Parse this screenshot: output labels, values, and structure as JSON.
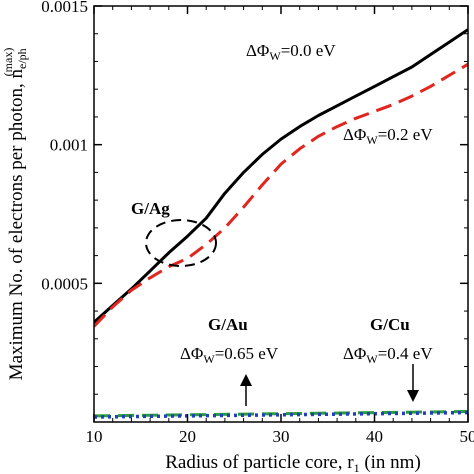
{
  "chart_data": {
    "type": "line",
    "xlabel": "Radius of particle core, r",
    "xlabel_sub": "1",
    "xlabel_tail": " (in nm)",
    "ylabel": "Maximum No. of electrons per photon, n",
    "ylabel_sub": "e/ph",
    "ylabel_sup": "(max)",
    "xlim": [
      10,
      50
    ],
    "ylim": [
      0,
      0.0015
    ],
    "x_ticks": [
      10,
      20,
      30,
      40,
      50
    ],
    "x_tick_labels": [
      "10",
      "20",
      "30",
      "40",
      "50"
    ],
    "y_ticks": [
      0.0005,
      0.001,
      0.0015
    ],
    "y_tick_labels": [
      "0.0005",
      "0.001",
      "0.0015"
    ],
    "grid": false,
    "series": [
      {
        "name": "ΔΦW=0.0 eV",
        "group": "G/Ag",
        "color": "#000000",
        "dash": "solid",
        "x": [
          10,
          12,
          14,
          16,
          18,
          20,
          22,
          24,
          26,
          28,
          30,
          32,
          34,
          36,
          38,
          40,
          42,
          44,
          46,
          48,
          50
        ],
        "y": [
          0.00036,
          0.00042,
          0.00048,
          0.000545,
          0.00061,
          0.00067,
          0.000735,
          0.000825,
          0.0009,
          0.000965,
          0.00102,
          0.001065,
          0.001105,
          0.00114,
          0.001175,
          0.00121,
          0.001245,
          0.00128,
          0.001325,
          0.00137,
          0.001415
        ]
      },
      {
        "name": "ΔΦW=0.2 eV",
        "group": "G/Ag",
        "color": "#e0261e",
        "dash": "dashed",
        "x": [
          10,
          12,
          14,
          16,
          18,
          20,
          22,
          24,
          26,
          28,
          30,
          32,
          34,
          36,
          38,
          40,
          42,
          44,
          46,
          48,
          50
        ],
        "y": [
          0.000345,
          0.000415,
          0.000475,
          0.00052,
          0.00056,
          0.00059,
          0.00064,
          0.0007,
          0.000775,
          0.000855,
          0.00093,
          0.000985,
          0.00103,
          0.001065,
          0.001095,
          0.00112,
          0.001145,
          0.001175,
          0.00121,
          0.00125,
          0.00129
        ]
      },
      {
        "name": "ΔΦW=0.65 eV",
        "group": "G/Au",
        "color": "#2a9d3a",
        "dash": "dashed",
        "x": [
          10,
          20,
          30,
          40,
          50
        ],
        "y": [
          2.2e-05,
          2.6e-05,
          3e-05,
          3.4e-05,
          3.8e-05
        ]
      },
      {
        "name": "ΔΦW=0.4 eV",
        "group": "G/Cu",
        "color": "#1f3fbf",
        "dash": "dotted",
        "x": [
          10,
          20,
          30,
          40,
          50
        ],
        "y": [
          1.8e-05,
          2.2e-05,
          2.6e-05,
          3e-05,
          3.4e-05
        ]
      }
    ],
    "annotations": {
      "ag_label": "G/Ag",
      "au_label": "G/Au",
      "cu_label": "G/Cu",
      "series_text": {
        "s0": "ΔΦ",
        "s0_sub": "W",
        "s0_tail": "=0.0 eV",
        "s1": "ΔΦ",
        "s1_sub": "W",
        "s1_tail": "=0.2 eV",
        "au": "ΔΦ",
        "au_sub": "W",
        "au_tail": "=0.65 eV",
        "cu": "ΔΦ",
        "cu_sub": "W",
        "cu_tail": "=0.4 eV"
      }
    }
  }
}
